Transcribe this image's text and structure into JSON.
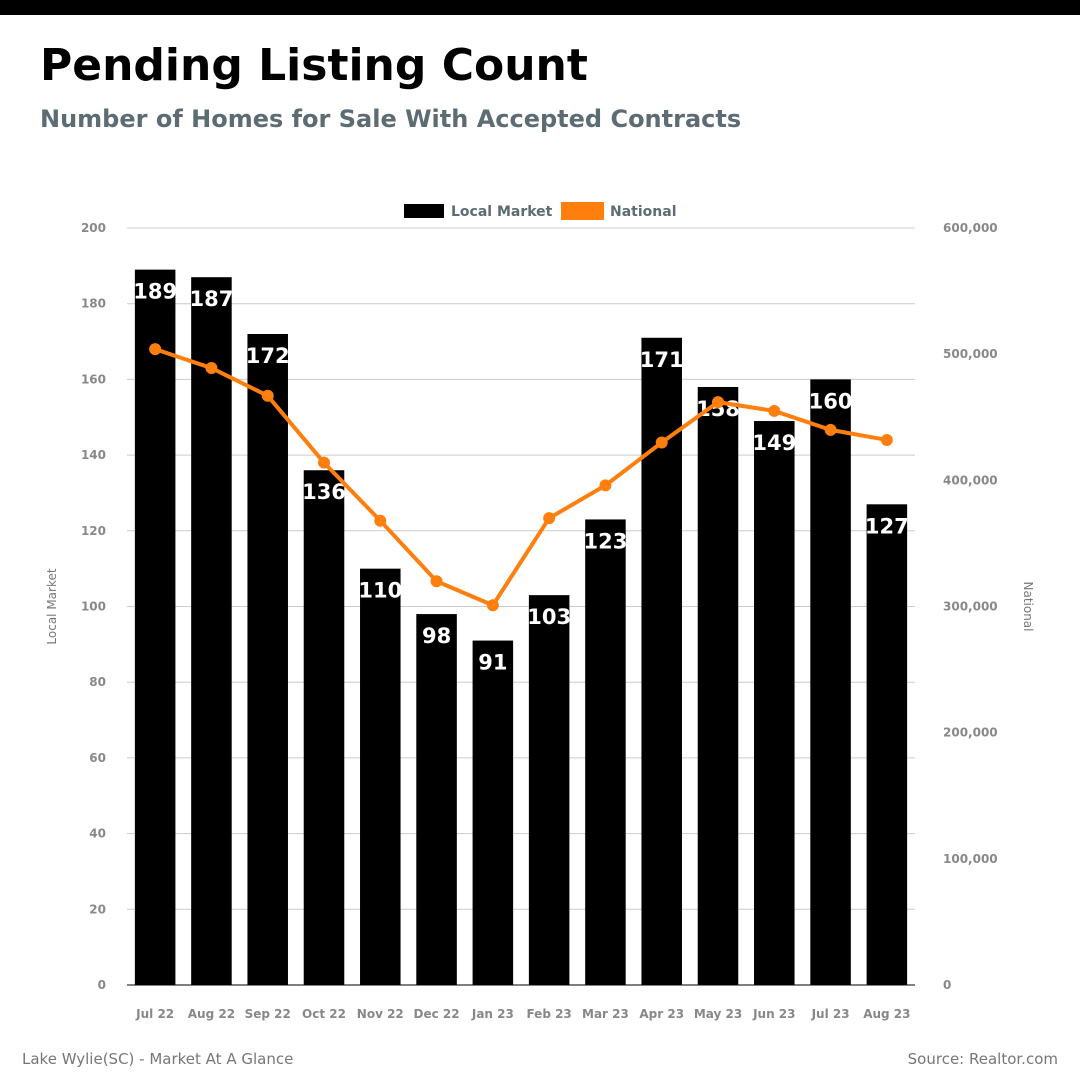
{
  "header": {
    "title": "Pending Listing Count",
    "subtitle": "Number of Homes for Sale With Accepted Contracts"
  },
  "footer": {
    "left": "Lake Wylie(SC) - Market At A Glance",
    "right": "Source: Realtor.com"
  },
  "colors": {
    "local": "#000000",
    "national": "#ff7f0e",
    "grid": "#cccccc"
  },
  "chart_data": {
    "type": "bar",
    "categories": [
      "Jul 22",
      "Aug 22",
      "Sep 22",
      "Oct 22",
      "Nov 22",
      "Dec 22",
      "Jan 23",
      "Feb 23",
      "Mar 23",
      "Apr 23",
      "May 23",
      "Jun 23",
      "Jul 23",
      "Aug 23"
    ],
    "series": [
      {
        "name": "Local Market",
        "type": "bar",
        "axis": "left",
        "values": [
          189,
          187,
          172,
          136,
          110,
          98,
          91,
          103,
          123,
          171,
          158,
          149,
          160,
          127
        ]
      },
      {
        "name": "National",
        "type": "line",
        "axis": "right",
        "values": [
          504000,
          489000,
          467000,
          414000,
          368000,
          320000,
          301000,
          370000,
          396000,
          430000,
          462000,
          455000,
          440000,
          432000
        ]
      }
    ],
    "ylabel_left": "Local Market",
    "ylabel_right": "National",
    "ylim_left": [
      0,
      200
    ],
    "ylim_right": [
      0,
      600000
    ],
    "yticks_left": [
      "0",
      "20",
      "40",
      "60",
      "80",
      "100",
      "120",
      "140",
      "160",
      "180",
      "200"
    ],
    "yticks_right": [
      "0",
      "100,000",
      "200,000",
      "300,000",
      "400,000",
      "500,000",
      "600,000"
    ],
    "legend_position": "top-center",
    "grid": true
  }
}
